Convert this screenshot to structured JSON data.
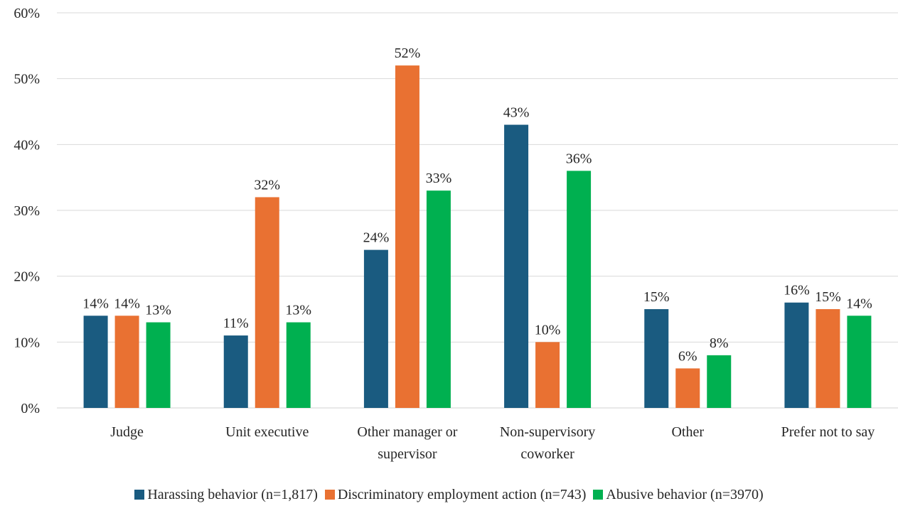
{
  "chart_data": {
    "type": "bar",
    "title": "",
    "xlabel": "",
    "ylabel": "",
    "ylim": [
      0,
      60
    ],
    "yticks": [
      "0%",
      "10%",
      "20%",
      "30%",
      "40%",
      "50%",
      "60%"
    ],
    "y_unit": "%",
    "grid": true,
    "legend_position": "bottom",
    "categories": [
      [
        "Judge"
      ],
      [
        "Unit executive"
      ],
      [
        "Other manager or",
        "supervisor"
      ],
      [
        "Non-supervisory",
        "coworker"
      ],
      [
        "Other"
      ],
      [
        "Prefer not to say"
      ]
    ],
    "series": [
      {
        "name": "Harassing behavior (n=1,817)",
        "color": "#1a5b80",
        "values": [
          14,
          11,
          24,
          43,
          15,
          16
        ]
      },
      {
        "name": "Discriminatory employment action (n=743)",
        "color": "#e97132",
        "values": [
          14,
          32,
          52,
          10,
          6,
          15
        ]
      },
      {
        "name": "Abusive behavior (n=3970)",
        "color": "#00b050",
        "values": [
          13,
          13,
          33,
          36,
          8,
          14
        ]
      }
    ]
  }
}
